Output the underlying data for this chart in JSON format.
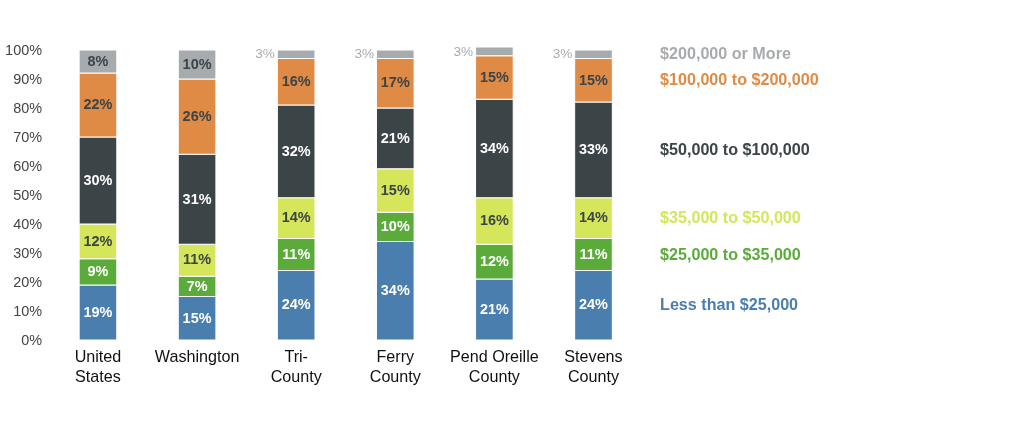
{
  "chart_data": {
    "type": "bar",
    "stacked": true,
    "legend": "right",
    "categories": [
      "United States",
      "Washington",
      "Tri-County",
      "Ferry County",
      "Pend Oreille County",
      "Stevens County"
    ],
    "ylim": [
      0,
      101
    ],
    "yticks": [
      {
        "value": 0,
        "label": "0%"
      },
      {
        "value": 10,
        "label": "10%"
      },
      {
        "value": 20,
        "label": "20%"
      },
      {
        "value": 30,
        "label": "30%"
      },
      {
        "value": 40,
        "label": "40%"
      },
      {
        "value": 50,
        "label": "50%"
      },
      {
        "value": 60,
        "label": "60%"
      },
      {
        "value": 70,
        "label": "70%"
      },
      {
        "value": 80,
        "label": "80%"
      },
      {
        "value": 90,
        "label": "90%"
      },
      {
        "value": 100,
        "label": "100%"
      }
    ],
    "series": [
      {
        "name": "Less than $25,000",
        "color": "#4a7eaf",
        "values": [
          19,
          15,
          24,
          34,
          21,
          24
        ],
        "value_labels": [
          "19%",
          "15%",
          "24%",
          "34%",
          "21%",
          "24%"
        ]
      },
      {
        "name": "$25,000 to $35,000",
        "color": "#5bab3a",
        "values": [
          9,
          7,
          11,
          10,
          12,
          11
        ],
        "value_labels": [
          "9%",
          "7%",
          "11%",
          "10%",
          "12%",
          "11%"
        ]
      },
      {
        "name": "$35,000 to $50,000",
        "color": "#d5e65b",
        "values": [
          12,
          11,
          14,
          15,
          16,
          14
        ],
        "value_labels": [
          "12%",
          "11%",
          "14%",
          "15%",
          "16%",
          "14%"
        ]
      },
      {
        "name": "$50,000 to $100,000",
        "color": "#3b4447",
        "values": [
          30,
          31,
          32,
          21,
          34,
          33
        ],
        "value_labels": [
          "30%",
          "31%",
          "32%",
          "21%",
          "34%",
          "33%"
        ]
      },
      {
        "name": "$100,000 to $200,000",
        "color": "#df8a45",
        "values": [
          22,
          26,
          16,
          17,
          15,
          15
        ],
        "value_labels": [
          "22%",
          "26%",
          "16%",
          "17%",
          "15%",
          "15%"
        ]
      },
      {
        "name": "$200,000 or More",
        "color": "#a8abad",
        "values": [
          8,
          10,
          3,
          3,
          3,
          3
        ],
        "value_labels": [
          "8%",
          "10%",
          "3%",
          "3%",
          "3%",
          "3%"
        ]
      }
    ]
  }
}
